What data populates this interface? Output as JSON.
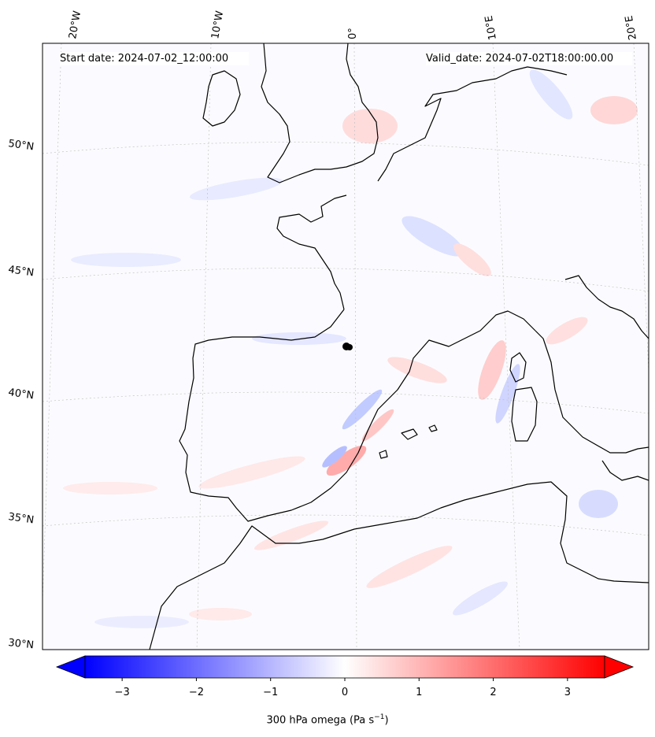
{
  "map": {
    "start_date_text": "Start date: 2024-07-02_12:00:00",
    "valid_date_text": "Valid_date: 2024-07-02T18:00:00.00",
    "variable": "300 hPa omega",
    "units_label": "(Pa s",
    "units_exp": "−1",
    "units_close": ")",
    "lon_labels": [
      "20°W",
      "10°W",
      "0°",
      "10°E",
      "20°E"
    ],
    "lat_labels": [
      "50°N",
      "45°N",
      "40°N",
      "35°N",
      "30°N"
    ],
    "colorbar": {
      "min": -3.5,
      "max": 3.5,
      "ticks": [
        "−3",
        "−2",
        "−1",
        "0",
        "1",
        "2",
        "3"
      ],
      "low_color": "#0000ff",
      "mid_color": "#ffffff",
      "high_color": "#ff0000",
      "extend": "both"
    },
    "colors": {
      "coast": "#000000",
      "grid": "#bbbbbb",
      "frame": "#000000"
    }
  }
}
